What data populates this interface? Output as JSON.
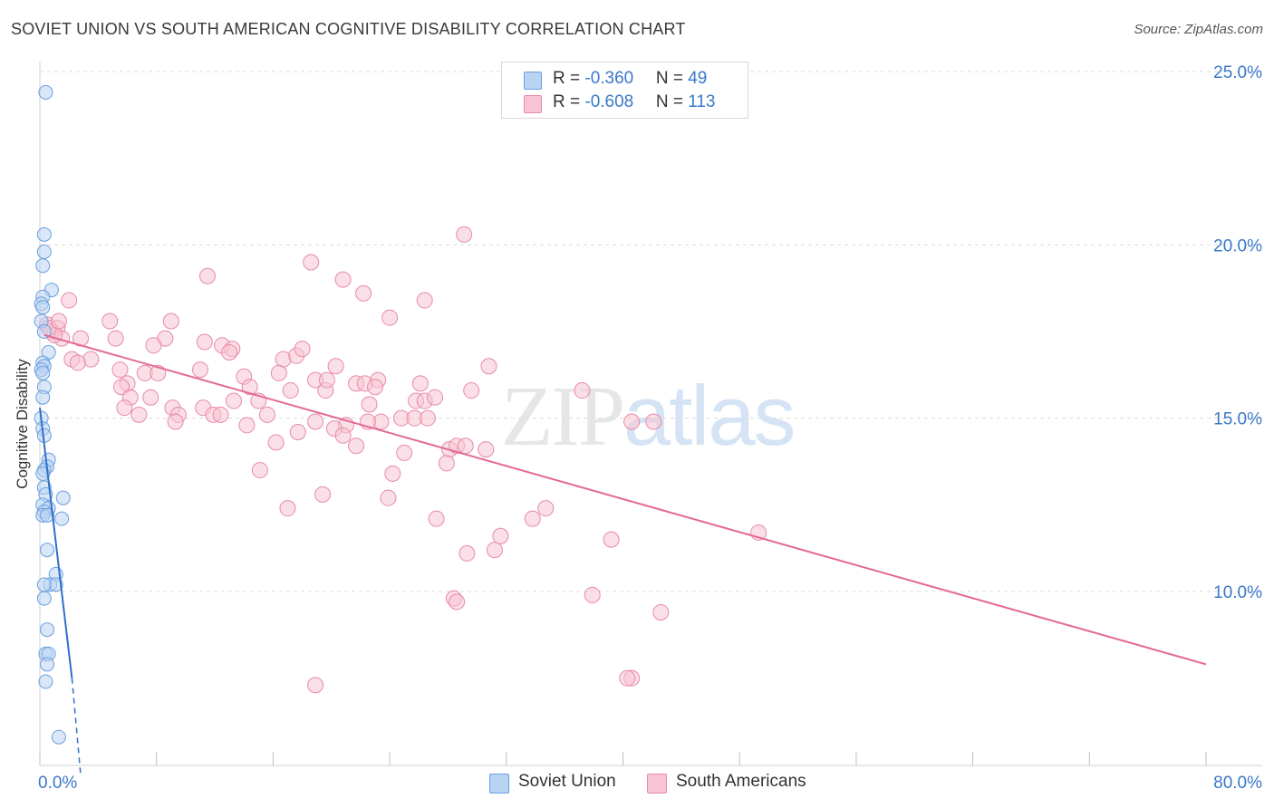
{
  "header": {
    "title": "SOVIET UNION VS SOUTH AMERICAN COGNITIVE DISABILITY CORRELATION CHART",
    "source": "Source: ZipAtlas.com"
  },
  "watermark": {
    "part1": "ZIP",
    "part2": "atlas"
  },
  "legend": {
    "soviet": {
      "r_label": "R = ",
      "r_value": "-0.360",
      "n_label": "N = ",
      "n_value": "49"
    },
    "south": {
      "r_label": "R = ",
      "r_value": "-0.608",
      "n_label": "N = ",
      "n_value": "113"
    }
  },
  "colors": {
    "soviet_fill": "#b9d3f2",
    "soviet_stroke": "#6a9fde",
    "soviet_line": "#2f6fcc",
    "south_fill": "#f8c4d4",
    "south_stroke": "#e88aa8",
    "south_line": "#e46a94",
    "tick_label": "#3a78c9",
    "grid": "#dcdcdc"
  },
  "chart_data": {
    "type": "scatter",
    "title": "SOVIET UNION VS SOUTH AMERICAN COGNITIVE DISABILITY CORRELATION CHART",
    "xlabel": "",
    "ylabel": "Cognitive Disability",
    "xlim": [
      0,
      80
    ],
    "ylim": [
      4.5,
      25.5
    ],
    "x_tick_labels": [
      {
        "value": 0,
        "label": "0.0%"
      },
      {
        "value": 80,
        "label": "80.0%"
      }
    ],
    "y_tick_labels": [
      {
        "value": 10,
        "label": "10.0%"
      },
      {
        "value": 15,
        "label": "15.0%"
      },
      {
        "value": 20,
        "label": "20.0%"
      },
      {
        "value": 25,
        "label": "25.0%"
      }
    ],
    "series": [
      {
        "name": "Soviet Union",
        "trend": {
          "x": [
            0.0,
            2.2
          ],
          "y": [
            15.3,
            7.5
          ],
          "dashed_to": [
            2.8,
            4.7
          ]
        },
        "points": [
          [
            0.4,
            24.4
          ],
          [
            0.3,
            20.3
          ],
          [
            0.3,
            19.8
          ],
          [
            0.2,
            19.4
          ],
          [
            0.8,
            18.7
          ],
          [
            0.2,
            18.5
          ],
          [
            0.1,
            18.3
          ],
          [
            0.2,
            18.2
          ],
          [
            0.1,
            17.8
          ],
          [
            0.3,
            17.5
          ],
          [
            0.6,
            16.9
          ],
          [
            0.2,
            16.6
          ],
          [
            0.3,
            16.5
          ],
          [
            0.1,
            16.4
          ],
          [
            0.2,
            16.3
          ],
          [
            0.3,
            15.9
          ],
          [
            0.2,
            15.6
          ],
          [
            0.1,
            15.0
          ],
          [
            0.2,
            14.7
          ],
          [
            0.3,
            14.5
          ],
          [
            0.6,
            13.8
          ],
          [
            0.5,
            13.6
          ],
          [
            0.3,
            13.5
          ],
          [
            0.2,
            13.4
          ],
          [
            0.3,
            13.0
          ],
          [
            0.4,
            12.8
          ],
          [
            1.6,
            12.7
          ],
          [
            0.2,
            12.5
          ],
          [
            0.6,
            12.4
          ],
          [
            0.3,
            12.3
          ],
          [
            0.2,
            12.2
          ],
          [
            0.5,
            12.2
          ],
          [
            1.5,
            12.1
          ],
          [
            0.5,
            11.2
          ],
          [
            1.1,
            10.5
          ],
          [
            0.7,
            10.2
          ],
          [
            1.1,
            10.2
          ],
          [
            0.3,
            10.2
          ],
          [
            0.3,
            9.8
          ],
          [
            0.5,
            8.9
          ],
          [
            0.4,
            8.2
          ],
          [
            0.6,
            8.2
          ],
          [
            0.5,
            7.9
          ],
          [
            0.4,
            7.4
          ],
          [
            1.3,
            5.8
          ]
        ]
      },
      {
        "name": "South Americans",
        "trend": {
          "x": [
            0.3,
            80.0
          ],
          "y": [
            17.4,
            7.9
          ]
        },
        "points": [
          [
            0.5,
            17.7
          ],
          [
            1.2,
            17.6
          ],
          [
            0.8,
            17.5
          ],
          [
            1.5,
            17.3
          ],
          [
            1.0,
            17.4
          ],
          [
            2.0,
            18.4
          ],
          [
            4.8,
            17.8
          ],
          [
            2.8,
            17.3
          ],
          [
            3.5,
            16.7
          ],
          [
            2.2,
            16.7
          ],
          [
            2.6,
            16.6
          ],
          [
            5.2,
            17.3
          ],
          [
            11.5,
            19.1
          ],
          [
            9.0,
            17.8
          ],
          [
            8.6,
            17.3
          ],
          [
            7.8,
            17.1
          ],
          [
            11.3,
            17.2
          ],
          [
            12.5,
            17.1
          ],
          [
            13.2,
            17.0
          ],
          [
            13.0,
            16.9
          ],
          [
            5.5,
            16.4
          ],
          [
            6.0,
            16.0
          ],
          [
            7.2,
            16.3
          ],
          [
            8.1,
            16.3
          ],
          [
            11.0,
            16.4
          ],
          [
            5.6,
            15.9
          ],
          [
            6.2,
            15.6
          ],
          [
            7.6,
            15.6
          ],
          [
            5.8,
            15.3
          ],
          [
            6.8,
            15.1
          ],
          [
            9.1,
            15.3
          ],
          [
            9.5,
            15.1
          ],
          [
            9.3,
            14.9
          ],
          [
            11.2,
            15.3
          ],
          [
            11.9,
            15.1
          ],
          [
            12.4,
            15.1
          ],
          [
            13.3,
            15.5
          ],
          [
            14.0,
            16.2
          ],
          [
            14.4,
            15.9
          ],
          [
            15.0,
            15.5
          ],
          [
            15.6,
            15.1
          ],
          [
            14.2,
            14.8
          ],
          [
            16.2,
            14.3
          ],
          [
            16.7,
            16.7
          ],
          [
            17.6,
            16.8
          ],
          [
            18.0,
            17.0
          ],
          [
            16.4,
            16.3
          ],
          [
            18.9,
            16.1
          ],
          [
            19.6,
            15.8
          ],
          [
            17.2,
            15.8
          ],
          [
            17.7,
            14.6
          ],
          [
            18.9,
            14.9
          ],
          [
            18.6,
            19.5
          ],
          [
            20.8,
            19.0
          ],
          [
            22.2,
            18.6
          ],
          [
            24.0,
            17.9
          ],
          [
            26.4,
            18.4
          ],
          [
            29.1,
            20.3
          ],
          [
            20.3,
            16.5
          ],
          [
            19.7,
            16.1
          ],
          [
            21.7,
            16.0
          ],
          [
            22.3,
            16.0
          ],
          [
            23.2,
            16.1
          ],
          [
            23.0,
            15.9
          ],
          [
            25.8,
            15.5
          ],
          [
            26.1,
            16.0
          ],
          [
            26.4,
            15.5
          ],
          [
            22.6,
            15.4
          ],
          [
            23.4,
            14.9
          ],
          [
            21.0,
            14.8
          ],
          [
            20.2,
            14.7
          ],
          [
            20.8,
            14.5
          ],
          [
            21.7,
            14.2
          ],
          [
            22.5,
            14.9
          ],
          [
            24.8,
            15.0
          ],
          [
            25.7,
            15.0
          ],
          [
            26.6,
            15.0
          ],
          [
            25.0,
            14.0
          ],
          [
            27.1,
            15.6
          ],
          [
            28.1,
            14.1
          ],
          [
            28.6,
            14.2
          ],
          [
            29.2,
            14.2
          ],
          [
            27.9,
            13.7
          ],
          [
            30.6,
            14.1
          ],
          [
            30.8,
            16.5
          ],
          [
            29.6,
            15.8
          ],
          [
            37.2,
            15.8
          ],
          [
            15.1,
            13.5
          ],
          [
            17.0,
            12.4
          ],
          [
            19.4,
            12.8
          ],
          [
            23.9,
            12.7
          ],
          [
            24.2,
            13.4
          ],
          [
            27.2,
            12.1
          ],
          [
            29.3,
            11.1
          ],
          [
            31.2,
            11.2
          ],
          [
            31.6,
            11.6
          ],
          [
            33.8,
            12.1
          ],
          [
            34.7,
            12.4
          ],
          [
            39.2,
            11.5
          ],
          [
            40.6,
            14.9
          ],
          [
            42.1,
            14.9
          ],
          [
            49.3,
            11.7
          ],
          [
            28.4,
            9.8
          ],
          [
            28.6,
            9.7
          ],
          [
            37.9,
            9.9
          ],
          [
            42.6,
            9.4
          ],
          [
            40.6,
            7.5
          ],
          [
            40.3,
            7.5
          ],
          [
            18.9,
            7.3
          ],
          [
            0.6,
            17.6
          ],
          [
            1.3,
            17.8
          ]
        ]
      }
    ]
  },
  "bottom_legend": {
    "items": [
      {
        "label": "Soviet Union"
      },
      {
        "label": "South Americans"
      }
    ]
  }
}
